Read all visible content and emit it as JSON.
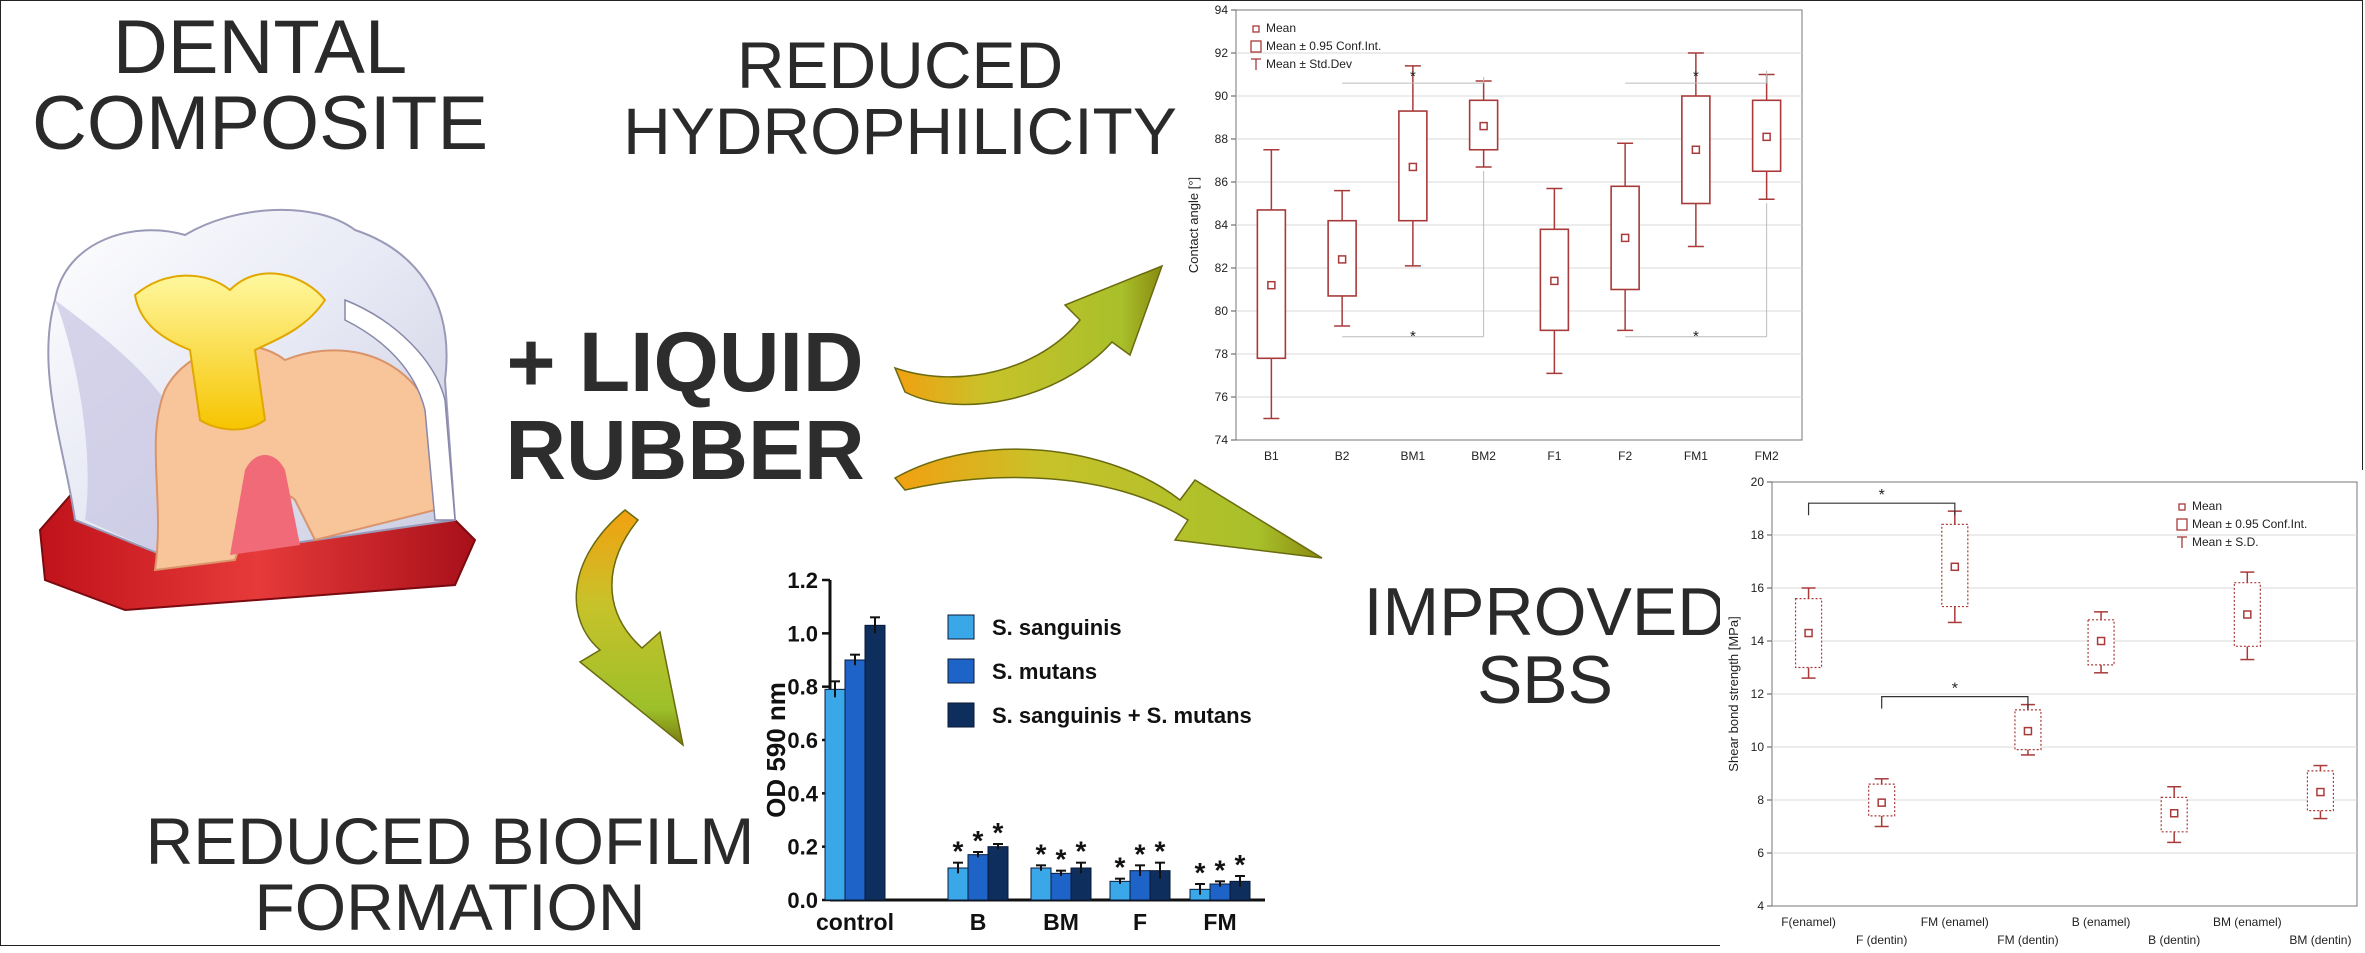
{
  "headlines": {
    "dental_line1": "DENTAL",
    "dental_line2": "COMPOSITE",
    "hydro_line1": "REDUCED",
    "hydro_line2": "HYDROPHILICITY",
    "rubber_line1": "+ LIQUID",
    "rubber_line2": "RUBBER",
    "sbs_line1": "IMPROVED",
    "sbs_line2": "SBS",
    "biofilm_line1": "REDUCED BIOFILM",
    "biofilm_line2": "FORMATION"
  },
  "colors": {
    "box_red": "#a83a3a",
    "arrow_yellow": "#c8c22a",
    "arrow_green": "#8fbe2a",
    "arrow_orange": "#f2a010",
    "bar_light": "#3aa8e8",
    "bar_mid": "#1e64c8",
    "bar_dark": "#0e2e5e"
  },
  "chart_data": [
    {
      "type": "box",
      "title": "",
      "xlabel": "",
      "ylabel": "Contact angle [°]",
      "ylim": [
        74,
        94
      ],
      "yticks": [
        74,
        76,
        78,
        80,
        82,
        84,
        86,
        88,
        90,
        92,
        94
      ],
      "grid": true,
      "legend_position": "top-left",
      "legend": [
        "Mean",
        "Mean ± 0.95 Conf.Int.",
        "Mean ± Std.Dev"
      ],
      "categories": [
        "B1",
        "B2",
        "BM1",
        "BM2",
        "F1",
        "F2",
        "FM1",
        "FM2"
      ],
      "mean": [
        81.2,
        82.4,
        86.7,
        88.6,
        81.4,
        83.4,
        87.5,
        88.1
      ],
      "ci_low": [
        77.8,
        80.7,
        84.2,
        87.5,
        79.1,
        81.0,
        85.0,
        86.5
      ],
      "ci_high": [
        84.7,
        84.2,
        89.3,
        89.8,
        83.8,
        85.8,
        90.0,
        89.8
      ],
      "sd_low": [
        75.0,
        79.3,
        82.1,
        86.7,
        77.1,
        79.1,
        83.0,
        85.2
      ],
      "sd_high": [
        87.5,
        85.6,
        91.4,
        90.7,
        85.7,
        87.8,
        92.0,
        91.0
      ],
      "annotations": [
        {
          "text": "*",
          "from": "B2",
          "to": "BM2",
          "level": 90.6,
          "side": "top"
        },
        {
          "text": "*",
          "from": "B2",
          "to": "BM2",
          "level": 78.8,
          "side": "bottom"
        },
        {
          "text": "*",
          "from": "F2",
          "to": "FM2",
          "level": 90.6,
          "side": "top"
        },
        {
          "text": "*",
          "from": "F2",
          "to": "FM2",
          "level": 78.8,
          "side": "bottom"
        }
      ]
    },
    {
      "type": "bar",
      "title": "",
      "xlabel": "",
      "ylabel": "OD 590 nm",
      "ylim": [
        0,
        1.2
      ],
      "yticks": [
        0.0,
        0.2,
        0.4,
        0.6,
        0.8,
        1.0,
        1.2
      ],
      "legend_position": "top-right",
      "categories": [
        "control",
        "B",
        "BM",
        "F",
        "FM"
      ],
      "series": [
        {
          "name": "S. sanguinis",
          "values": [
            0.79,
            0.12,
            0.12,
            0.07,
            0.04
          ],
          "errors": [
            0.03,
            0.02,
            0.01,
            0.01,
            0.02
          ],
          "stars": [
            false,
            true,
            true,
            true,
            true
          ]
        },
        {
          "name": "S. mutans",
          "values": [
            0.9,
            0.17,
            0.1,
            0.11,
            0.06
          ],
          "errors": [
            0.02,
            0.01,
            0.01,
            0.02,
            0.01
          ],
          "stars": [
            false,
            true,
            true,
            true,
            true
          ]
        },
        {
          "name": "S. sanguinis + S. mutans",
          "values": [
            1.03,
            0.2,
            0.12,
            0.11,
            0.07
          ],
          "errors": [
            0.03,
            0.01,
            0.02,
            0.03,
            0.02
          ],
          "stars": [
            false,
            true,
            true,
            true,
            true
          ]
        }
      ]
    },
    {
      "type": "box",
      "title": "",
      "xlabel": "",
      "ylabel": "Shear bond strength [MPa]",
      "ylim": [
        4,
        20
      ],
      "yticks": [
        4,
        6,
        8,
        10,
        12,
        14,
        16,
        18,
        20
      ],
      "grid": true,
      "legend_position": "top-right",
      "legend": [
        "Mean",
        "Mean ± 0.95 Conf.Int.",
        "Mean ± S.D."
      ],
      "categories": [
        "F(enamel)",
        "F (dentin)",
        "FM (enamel)",
        "FM (dentin)",
        "B (enamel)",
        "B (dentin)",
        "BM (enamel)",
        "BM (dentin)"
      ],
      "mean": [
        14.3,
        7.9,
        16.8,
        10.6,
        14.0,
        7.5,
        15.0,
        8.3
      ],
      "ci_low": [
        13.0,
        7.4,
        15.3,
        9.9,
        13.1,
        6.8,
        13.8,
        7.6
      ],
      "ci_high": [
        15.6,
        8.6,
        18.4,
        11.4,
        14.8,
        8.1,
        16.2,
        9.1
      ],
      "sd_low": [
        12.6,
        7.0,
        14.7,
        9.7,
        12.8,
        6.4,
        13.3,
        7.3
      ],
      "sd_high": [
        16.0,
        8.8,
        18.9,
        11.6,
        15.1,
        8.5,
        16.6,
        9.3
      ],
      "annotations": [
        {
          "text": "*",
          "from": "F(enamel)",
          "to": "FM (enamel)",
          "level": 19.2
        },
        {
          "text": "*",
          "from": "F (dentin)",
          "to": "FM (dentin)",
          "level": 11.9
        }
      ]
    }
  ]
}
